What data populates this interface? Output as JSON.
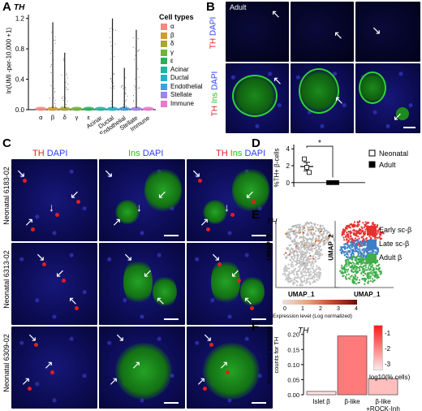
{
  "panels": {
    "A": {
      "label": "A",
      "gene": "TH",
      "ylabel": "ln(UMI -per-10,000 +1)",
      "yticks": [
        "0.0",
        "0.4",
        "0.8",
        "1.2"
      ],
      "legend_title": "Cell types",
      "legend": [
        {
          "name": "α",
          "color": "#f08a7e"
        },
        {
          "name": "β",
          "color": "#d39a2e"
        },
        {
          "name": "δ",
          "color": "#a9a630"
        },
        {
          "name": "γ",
          "color": "#6cb43a"
        },
        {
          "name": "ε",
          "color": "#27b15a"
        },
        {
          "name": "Acinar",
          "color": "#1fb6a0"
        },
        {
          "name": "Ductal",
          "color": "#1fb3c9"
        },
        {
          "name": "Endothelial",
          "color": "#3fa1e4"
        },
        {
          "name": "Stellate",
          "color": "#9f83e8"
        },
        {
          "name": "Immune",
          "color": "#e57ad1"
        }
      ]
    },
    "B": {
      "label": "B",
      "title": "Adult",
      "row1_label": [
        "TH",
        "DAPI"
      ],
      "row2_label": [
        "TH",
        "Ins",
        "DAPI"
      ]
    },
    "C": {
      "label": "C",
      "headers": [
        [
          "TH",
          "DAPI"
        ],
        [
          "Ins",
          "DAPI"
        ],
        [
          "TH",
          "Ins",
          "DAPI"
        ]
      ],
      "rows": [
        "Neonatal 6183-02",
        "Neonatal 6313-02",
        "Neonatal 6309-02"
      ]
    },
    "D": {
      "label": "D",
      "ylabel": "%TH+ β-cells",
      "yticks": [
        "0",
        "2",
        "4"
      ],
      "significance": "*",
      "legend": [
        "Neonatal",
        "Adult"
      ]
    },
    "E": {
      "label": "E",
      "gene": "TH",
      "xlabel": "UMAP_1",
      "ylabel": "UMAP_2",
      "colorbar_ticks": [
        "0",
        "1",
        "2",
        "3",
        "4"
      ],
      "colorbar_label": "Expression level (Log normalized)",
      "legend": [
        {
          "name": "Early sc-β",
          "color": "#e8312f"
        },
        {
          "name": "Late sc-β",
          "color": "#3e7fc4"
        },
        {
          "name": "Adult β",
          "color": "#3fae49"
        }
      ]
    },
    "F": {
      "label": "F",
      "gene": "TH",
      "ylabel": "Normalized transcript counts for TH",
      "yticks": [
        "0.00",
        "0.05",
        "0.10",
        "0.15",
        "0.20"
      ],
      "colorbar_ticks": [
        "-1",
        "-2",
        "-3"
      ],
      "colorbar_label": "log10(% cells)"
    }
  },
  "chart_data": [
    {
      "type": "scatter",
      "title": "TH",
      "xlabel": "",
      "ylabel": "ln(UMI -per-10,000 +1)",
      "ylim": [
        0,
        1.25
      ],
      "categories": [
        "α",
        "β",
        "δ",
        "γ",
        "ε",
        "Acinar",
        "Ductal",
        "Endothelial",
        "Stellate",
        "Immune"
      ],
      "max_values": [
        0.0,
        1.15,
        0.75,
        0.0,
        0.0,
        0.0,
        1.2,
        0.55,
        1.05,
        0.0
      ]
    },
    {
      "type": "scatter",
      "title": "",
      "ylabel": "%TH+ β-cells",
      "ylim": [
        -0.5,
        4.5
      ],
      "series": [
        {
          "name": "Neonatal",
          "values": [
            2.8,
            1.8,
            1.2
          ],
          "mean": 1.9,
          "sem": 0.5
        },
        {
          "name": "Adult",
          "values": [
            0,
            0,
            0
          ],
          "mean": 0,
          "sem": 0
        }
      ]
    },
    {
      "type": "bar",
      "title": "TH",
      "categories": [
        "Islet β",
        "β-like",
        "β-like +ROCK-Inh"
      ],
      "values": [
        0.011,
        0.195,
        0.054
      ],
      "log10_pct_cells": [
        -2.9,
        -1.4,
        -2.4
      ],
      "ylabel": "Normalized transcript counts for TH",
      "ylim": [
        0,
        0.21
      ],
      "colorbar_range": [
        -3,
        0
      ]
    }
  ]
}
